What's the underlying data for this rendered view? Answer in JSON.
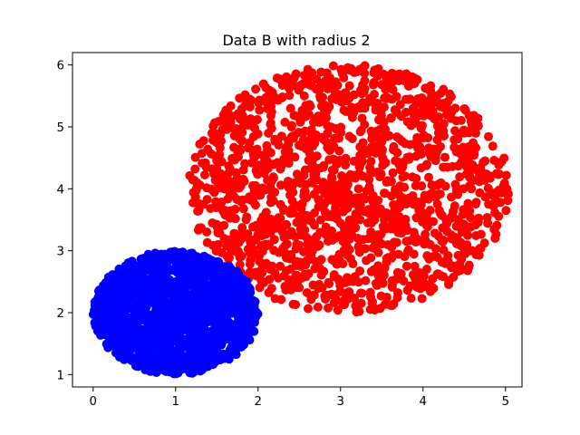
{
  "chart_data": {
    "type": "scatter",
    "title": "Data B with radius 2",
    "xlabel": "",
    "ylabel": "",
    "xlim": [
      -0.25,
      5.2
    ],
    "ylim": [
      0.8,
      6.2
    ],
    "xticks": [
      0,
      1,
      2,
      3,
      4,
      5
    ],
    "yticks": [
      1,
      2,
      3,
      4,
      5,
      6
    ],
    "grid": false,
    "legend": "none",
    "series": [
      {
        "color": "#ff0000",
        "distribution": "uniform-disc",
        "center": [
          3.1,
          4.0
        ],
        "radius": [
          1.95,
          2.0
        ],
        "count": 1500
      },
      {
        "color": "#0000ff",
        "distribution": "uniform-disc",
        "center": [
          1.0,
          2.0
        ],
        "radius": [
          1.0,
          1.0
        ],
        "count": 1500
      }
    ]
  }
}
